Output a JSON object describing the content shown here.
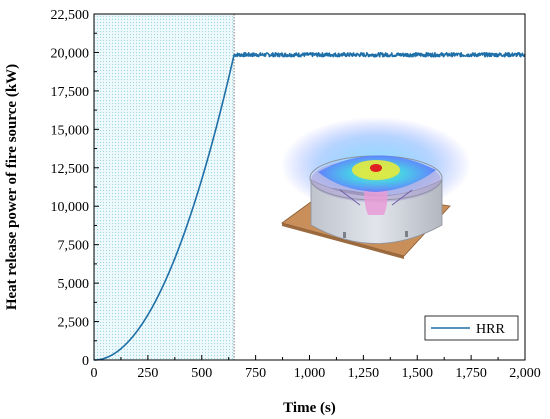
{
  "chart_data": {
    "type": "line",
    "title": "",
    "xlabel": "Time (s)",
    "ylabel": "Heat release power of fire source (kW)",
    "xlim": [
      0,
      2000
    ],
    "ylim": [
      0,
      22500
    ],
    "x_ticks": [
      0,
      250,
      500,
      750,
      1000,
      1250,
      1500,
      1750,
      2000
    ],
    "x_tick_labels": [
      "0",
      "250",
      "500",
      "750",
      "1,000",
      "1,250",
      "1,500",
      "1,750",
      "2,000"
    ],
    "y_ticks": [
      0,
      2500,
      5000,
      7500,
      10000,
      12500,
      15000,
      17500,
      20000,
      22500
    ],
    "y_tick_labels": [
      "0",
      "2,500",
      "5,000",
      "7,500",
      "10,000",
      "12,500",
      "15,000",
      "17,500",
      "20,000",
      "22,500"
    ],
    "grid": false,
    "legend": {
      "position": "bottom-right"
    },
    "shaded_region": {
      "x_start": 0,
      "x_end": 650
    },
    "vertical_marker_x": 650,
    "series": [
      {
        "name": "HRR",
        "color": "#1f6fa8",
        "growth": "t-squared",
        "peak_time": 650,
        "steady_value": 19850,
        "x": [
          0,
          50,
          100,
          150,
          200,
          250,
          300,
          350,
          400,
          450,
          500,
          550,
          600,
          650,
          700,
          800,
          900,
          1000,
          1100,
          1200,
          1300,
          1400,
          1500,
          1600,
          1700,
          1800,
          1900,
          2000
        ],
        "y": [
          0,
          117,
          470,
          1057,
          1879,
          2936,
          4228,
          5755,
          7517,
          9514,
          11746,
          14213,
          16914,
          19850,
          19850,
          19850,
          19850,
          19850,
          19850,
          19850,
          19850,
          19850,
          19850,
          19850,
          19850,
          19850,
          19850,
          19850
        ]
      }
    ]
  }
}
